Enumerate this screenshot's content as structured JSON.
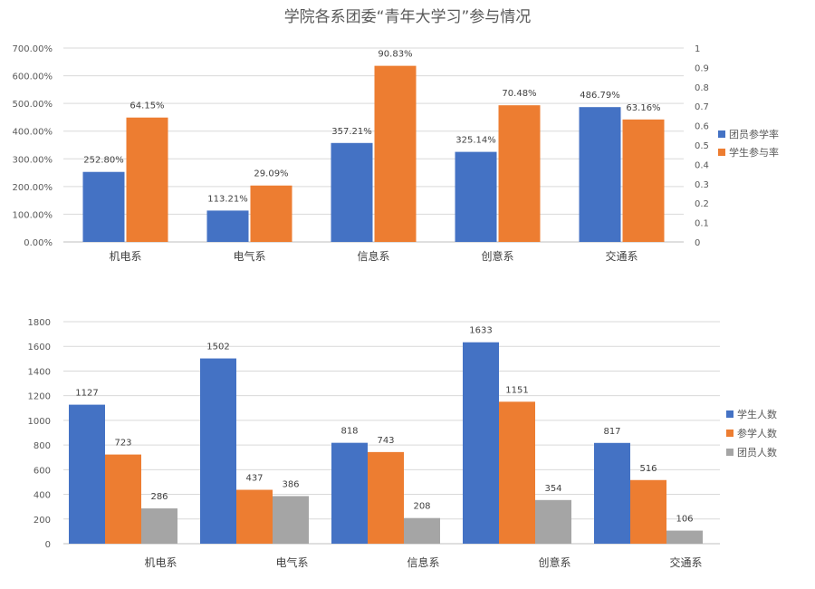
{
  "page_title": "学院各系团委“青年大学习”参与情况",
  "colors": {
    "blue": "#4472C4",
    "orange": "#ED7D31",
    "gray": "#A5A5A5"
  },
  "chart_data": [
    {
      "type": "bar",
      "categories": [
        "机电系",
        "电气系",
        "信息系",
        "创意系",
        "交通系"
      ],
      "series": [
        {
          "name": "团员参学率",
          "axis": "left",
          "values": [
            252.8,
            113.21,
            357.21,
            325.14,
            486.79
          ],
          "labels": [
            "252.80%",
            "113.21%",
            "357.21%",
            "325.14%",
            "486.79%"
          ]
        },
        {
          "name": "学生参与率",
          "axis": "right",
          "values": [
            0.6415,
            0.2909,
            0.9083,
            0.7048,
            0.6316
          ],
          "labels": [
            "64.15%",
            "29.09%",
            "90.83%",
            "70.48%",
            "63.16%"
          ]
        }
      ],
      "left_axis": {
        "min": 0,
        "max": 700,
        "ticks": [
          "0.00%",
          "100.00%",
          "200.00%",
          "300.00%",
          "400.00%",
          "500.00%",
          "600.00%",
          "700.00%"
        ]
      },
      "right_axis": {
        "min": 0,
        "max": 1,
        "ticks": [
          "0",
          "0.1",
          "0.2",
          "0.3",
          "0.4",
          "0.5",
          "0.6",
          "0.7",
          "0.8",
          "0.9",
          "1"
        ]
      },
      "legend_position": "right",
      "grid": true
    },
    {
      "type": "bar",
      "categories": [
        "机电系",
        "电气系",
        "信息系",
        "创意系",
        "交通系"
      ],
      "series": [
        {
          "name": "学生人数",
          "values": [
            1127,
            1502,
            818,
            1633,
            817
          ]
        },
        {
          "name": "参学人数",
          "values": [
            723,
            437,
            743,
            1151,
            516
          ]
        },
        {
          "name": "团员人数",
          "values": [
            286,
            386,
            208,
            354,
            106
          ]
        }
      ],
      "y_axis": {
        "min": 0,
        "max": 1800,
        "ticks": [
          "0",
          "200",
          "400",
          "600",
          "800",
          "1000",
          "1200",
          "1400",
          "1600",
          "1800"
        ]
      },
      "legend_position": "right",
      "grid": true
    }
  ]
}
